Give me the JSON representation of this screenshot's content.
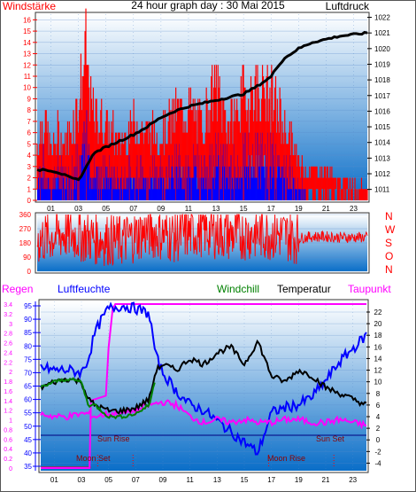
{
  "title": "24 hour graph day : 30 Mai 2015",
  "colors": {
    "frame_bg": "#ffffff",
    "plot_top": "#ffffff",
    "plot_bottom": "#0a6ec8",
    "wind_speed": "#ff0000",
    "wind_gust_low": "#0000ff",
    "pressure": "#000000",
    "direction": "#ff0000",
    "temperature": "#000000",
    "windchill": "#008000",
    "humidity": "#0000ff",
    "dewpoint": "#ff00ff",
    "rain": "#ff00ff",
    "sun_line": "#00007f",
    "moon": "#ff0000"
  },
  "time_ticks": [
    "01",
    "03",
    "05",
    "07",
    "09",
    "11",
    "13",
    "15",
    "17",
    "19",
    "21",
    "23"
  ],
  "panel_wind": {
    "left_label": "Windstärke",
    "right_label": "Luftdruck",
    "left_ticks": [
      "0",
      "1",
      "2",
      "3",
      "4",
      "5",
      "6",
      "7",
      "8",
      "9",
      "10",
      "11",
      "12",
      "13",
      "14",
      "15",
      "16"
    ],
    "right_ticks": [
      "1011",
      "1012",
      "1013",
      "1014",
      "1015",
      "1016",
      "1017",
      "1018",
      "1019",
      "1020",
      "1021",
      "1022"
    ]
  },
  "panel_dir": {
    "left_ticks": [
      "0",
      "90",
      "180",
      "270",
      "360"
    ],
    "compass": [
      "N",
      "W",
      "S",
      "O",
      "N"
    ]
  },
  "panel_temp": {
    "labels": {
      "rain": "Regen",
      "humidity": "Luftfeuchte",
      "windchill": "Windchill",
      "temperature": "Temperatur",
      "dewpoint": "Taupunkt"
    },
    "rain_ticks": [
      "0",
      "0.2",
      "0.4",
      "0.6",
      "0.8",
      "1",
      "1.2",
      "1.4",
      "1.6",
      "1.8",
      "2",
      "2.2",
      "2.4",
      "2.6",
      "2.8",
      "3",
      "3.2",
      "3.4"
    ],
    "humidity_ticks": [
      "35",
      "40",
      "45",
      "50",
      "55",
      "60",
      "65",
      "70",
      "75",
      "80",
      "85",
      "90",
      "95"
    ],
    "temp_ticks": [
      "-4",
      "-2",
      "0",
      "2",
      "4",
      "6",
      "8",
      "10",
      "12",
      "14",
      "16",
      "18",
      "20",
      "22"
    ],
    "annotations": {
      "sun_rise": "Sun Rise",
      "sun_set": "Sun Set",
      "moon_set": "Moon Set",
      "moon_rise": "Moon Rise"
    }
  },
  "chart_data": [
    {
      "type": "line",
      "title": "24 hour graph day : 30 Mai 2015",
      "xlabel": "",
      "x_unit": "hour",
      "xlim": [
        0,
        24
      ],
      "ylim_left": [
        0,
        16.5
      ],
      "ylim_right": [
        1010.3,
        1022.2
      ],
      "series": [
        {
          "name": "Windstärke",
          "axis": "left",
          "x": [
            0,
            0.5,
            1,
            1.5,
            2,
            2.5,
            3,
            3.5,
            4,
            5,
            6,
            7,
            8,
            9,
            10,
            11,
            12,
            13,
            14,
            15,
            16,
            17,
            18,
            19,
            20,
            21,
            22,
            23,
            24
          ],
          "values": [
            6,
            9,
            5,
            7,
            6,
            8,
            10,
            16,
            9,
            8,
            6,
            8,
            7,
            7,
            9,
            10,
            8,
            12,
            8,
            11,
            12,
            11,
            8,
            4,
            3,
            3,
            2,
            2,
            1
          ]
        },
        {
          "name": "Luftdruck",
          "axis": "right",
          "x": [
            0,
            0.5,
            1,
            1.5,
            2,
            2.5,
            3,
            3.5,
            4,
            4.5,
            5,
            6,
            7,
            8,
            9,
            10,
            11,
            12,
            13,
            14,
            15,
            16,
            17,
            17.5,
            18,
            19,
            20,
            21,
            22,
            23,
            24
          ],
          "values": [
            1012.2,
            1012.3,
            1012.2,
            1012.1,
            1011.9,
            1011.7,
            1011.6,
            1012.3,
            1013.2,
            1013.5,
            1013.7,
            1014.1,
            1014.5,
            1015.0,
            1015.6,
            1016.0,
            1016.3,
            1016.5,
            1016.7,
            1016.9,
            1017.1,
            1017.6,
            1018.2,
            1018.9,
            1019.4,
            1020.0,
            1020.4,
            1020.6,
            1020.8,
            1020.9,
            1021.0
          ]
        }
      ]
    },
    {
      "type": "scatter",
      "xlabel": "",
      "x_unit": "hour",
      "xlim": [
        0,
        24
      ],
      "ylim": [
        0,
        360
      ],
      "yticks": [
        0,
        90,
        180,
        270,
        360
      ],
      "series": [
        {
          "x": [
            0,
            2,
            4,
            6,
            8,
            10,
            12,
            14,
            16,
            18,
            19,
            20,
            21,
            22,
            23
          ],
          "values": [
            200,
            240,
            210,
            190,
            250,
            220,
            260,
            230,
            240,
            230,
            210,
            220,
            220,
            215,
            215
          ]
        }
      ]
    },
    {
      "type": "line",
      "xlabel": "",
      "x_unit": "hour",
      "xlim": [
        0,
        24
      ],
      "ylim_rain": [
        0,
        3.4
      ],
      "ylim_humidity": [
        35,
        95
      ],
      "ylim_temp": [
        -5,
        22
      ],
      "series": [
        {
          "name": "Regen",
          "axis": "rain",
          "x": [
            0,
            3.6,
            3.7,
            4.8,
            5.0,
            5.3,
            5.5,
            24
          ],
          "values": [
            0,
            0,
            1.4,
            1.5,
            2.5,
            3.3,
            3.4,
            3.4
          ]
        },
        {
          "name": "Luftfeuchte",
          "axis": "humidity",
          "x": [
            0,
            1,
            2,
            3,
            3.5,
            4,
            4.5,
            5,
            6,
            7,
            8,
            8.5,
            9,
            10,
            11,
            12,
            13,
            14,
            15,
            16,
            17,
            18,
            19,
            20,
            21,
            22,
            23,
            24
          ],
          "values": [
            72,
            71,
            71,
            70,
            75,
            85,
            90,
            94,
            95,
            94,
            92,
            76,
            70,
            63,
            58,
            56,
            52,
            48,
            44,
            40,
            55,
            57,
            58,
            61,
            67,
            74,
            79,
            84
          ]
        },
        {
          "name": "Windchill",
          "axis": "temp",
          "x": [
            0,
            1,
            2,
            3,
            3.5,
            4,
            5,
            6,
            7,
            8,
            8.5
          ],
          "values": [
            9,
            10,
            10.5,
            10,
            6,
            6,
            4,
            4,
            4.5,
            6,
            11
          ]
        },
        {
          "name": "Temperatur",
          "axis": "temp",
          "x": [
            0,
            1,
            2,
            3,
            3.5,
            4,
            5,
            6,
            7,
            8,
            8.5,
            9,
            10,
            11,
            12,
            13,
            14,
            15,
            16,
            17,
            18,
            19,
            20,
            21,
            22,
            23,
            24
          ],
          "values": [
            9,
            10,
            10.5,
            10,
            7,
            6,
            5,
            5,
            5.5,
            7,
            12,
            13,
            12,
            14,
            13,
            15,
            16,
            13,
            17,
            11,
            10,
            12,
            11,
            9,
            8,
            7,
            6
          ]
        },
        {
          "name": "Taupunkt",
          "axis": "temp",
          "x": [
            0,
            1,
            2,
            3,
            3.5,
            4,
            5,
            6,
            7,
            8,
            9,
            10,
            11,
            12,
            13,
            14,
            15,
            16,
            17,
            18,
            19,
            20,
            21,
            22,
            23,
            24
          ],
          "values": [
            4.5,
            4,
            4,
            4.5,
            4.5,
            4,
            4.5,
            4.5,
            5,
            6,
            6.5,
            6,
            4,
            3,
            3.5,
            3,
            3.5,
            3,
            3,
            3.5,
            3.5,
            3,
            3,
            3.5,
            3,
            2.5
          ]
        }
      ]
    }
  ]
}
